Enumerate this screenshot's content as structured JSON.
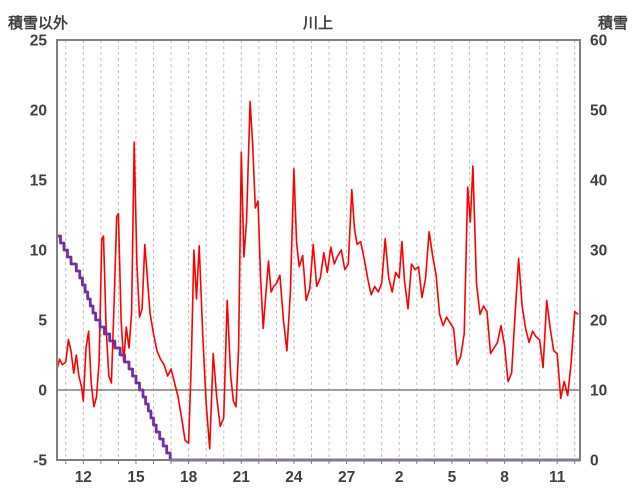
{
  "chart_data": {
    "type": "line",
    "title": "川上",
    "grid": "vertical-dashed",
    "legend": "none",
    "left_axis": {
      "title": "積雪以外",
      "min": -5,
      "max": 25,
      "ticks": [
        -5,
        0,
        5,
        10,
        15,
        20,
        25
      ]
    },
    "right_axis": {
      "title": "積雪",
      "min": 0,
      "max": 60,
      "ticks": [
        0,
        10,
        20,
        30,
        40,
        50,
        60
      ]
    },
    "x_axis": {
      "min": 10.5,
      "max": 40.3,
      "gridline_step": 1,
      "tick_days": [
        12,
        15,
        18,
        21,
        24,
        27,
        30,
        33,
        36,
        39
      ],
      "tick_labels": [
        "12",
        "15",
        "18",
        "21",
        "24",
        "27",
        "2",
        "5",
        "8",
        "11"
      ]
    },
    "zero_line_left_value": 0,
    "colors": {
      "red_series": "#ff0000",
      "purple_series": "#7030a0",
      "border": "#7f7f7f",
      "gridline": "#bfbfbf",
      "zero_line": "#7f7f7f",
      "tick_text": "#3f3f3f"
    },
    "series": [
      {
        "name": "積雪以外",
        "axis": "left",
        "style": "line",
        "color": "#ff0000",
        "width": 1.6,
        "points": [
          [
            10.5,
            1.5
          ],
          [
            10.65,
            2.2
          ],
          [
            10.8,
            1.8
          ],
          [
            11.0,
            2.0
          ],
          [
            11.15,
            3.6
          ],
          [
            11.3,
            2.8
          ],
          [
            11.45,
            1.2
          ],
          [
            11.6,
            2.5
          ],
          [
            11.75,
            1.0
          ],
          [
            11.9,
            0.2
          ],
          [
            12.0,
            -0.8
          ],
          [
            12.15,
            3.0
          ],
          [
            12.3,
            4.2
          ],
          [
            12.45,
            0.5
          ],
          [
            12.6,
            -1.2
          ],
          [
            12.75,
            -0.5
          ],
          [
            12.9,
            2.0
          ],
          [
            13.05,
            10.8
          ],
          [
            13.15,
            11.0
          ],
          [
            13.3,
            4.5
          ],
          [
            13.45,
            1.0
          ],
          [
            13.6,
            0.5
          ],
          [
            13.75,
            6.0
          ],
          [
            13.9,
            12.4
          ],
          [
            14.0,
            12.6
          ],
          [
            14.15,
            5.0
          ],
          [
            14.3,
            2.0
          ],
          [
            14.45,
            4.5
          ],
          [
            14.6,
            3.0
          ],
          [
            14.75,
            5.5
          ],
          [
            14.9,
            17.7
          ],
          [
            15.05,
            9.0
          ],
          [
            15.2,
            5.2
          ],
          [
            15.35,
            5.8
          ],
          [
            15.5,
            10.4
          ],
          [
            15.65,
            8.0
          ],
          [
            15.8,
            5.5
          ],
          [
            16.0,
            4.0
          ],
          [
            16.2,
            2.8
          ],
          [
            16.4,
            2.2
          ],
          [
            16.6,
            1.8
          ],
          [
            16.8,
            1.0
          ],
          [
            17.0,
            1.5
          ],
          [
            17.2,
            0.5
          ],
          [
            17.4,
            -0.5
          ],
          [
            17.6,
            -2.0
          ],
          [
            17.8,
            -3.6
          ],
          [
            18.0,
            -3.8
          ],
          [
            18.15,
            2.0
          ],
          [
            18.3,
            10.0
          ],
          [
            18.45,
            6.5
          ],
          [
            18.6,
            10.3
          ],
          [
            18.8,
            4.0
          ],
          [
            19.0,
            -1.0
          ],
          [
            19.2,
            -4.2
          ],
          [
            19.4,
            2.6
          ],
          [
            19.6,
            -0.5
          ],
          [
            19.8,
            -2.6
          ],
          [
            20.0,
            -2.0
          ],
          [
            20.2,
            6.4
          ],
          [
            20.4,
            1.0
          ],
          [
            20.55,
            -0.8
          ],
          [
            20.7,
            -1.2
          ],
          [
            20.85,
            3.0
          ],
          [
            21.0,
            17.0
          ],
          [
            21.15,
            9.5
          ],
          [
            21.3,
            12.0
          ],
          [
            21.5,
            20.6
          ],
          [
            21.65,
            17.5
          ],
          [
            21.8,
            13.0
          ],
          [
            21.95,
            13.5
          ],
          [
            22.1,
            8.0
          ],
          [
            22.25,
            4.4
          ],
          [
            22.4,
            6.8
          ],
          [
            22.55,
            9.2
          ],
          [
            22.7,
            7.0
          ],
          [
            22.85,
            7.4
          ],
          [
            23.0,
            7.6
          ],
          [
            23.2,
            8.2
          ],
          [
            23.4,
            5.0
          ],
          [
            23.6,
            2.8
          ],
          [
            23.8,
            7.0
          ],
          [
            24.0,
            15.8
          ],
          [
            24.15,
            10.5
          ],
          [
            24.3,
            8.8
          ],
          [
            24.5,
            9.6
          ],
          [
            24.7,
            6.4
          ],
          [
            24.9,
            7.2
          ],
          [
            25.1,
            10.4
          ],
          [
            25.3,
            7.4
          ],
          [
            25.5,
            8.0
          ],
          [
            25.7,
            9.8
          ],
          [
            25.9,
            8.4
          ],
          [
            26.1,
            10.2
          ],
          [
            26.3,
            9.0
          ],
          [
            26.5,
            9.6
          ],
          [
            26.7,
            10.0
          ],
          [
            26.9,
            8.6
          ],
          [
            27.1,
            9.0
          ],
          [
            27.3,
            14.3
          ],
          [
            27.45,
            11.5
          ],
          [
            27.6,
            10.4
          ],
          [
            27.8,
            10.6
          ],
          [
            28.0,
            9.4
          ],
          [
            28.2,
            8.0
          ],
          [
            28.4,
            6.8
          ],
          [
            28.6,
            7.4
          ],
          [
            28.8,
            7.0
          ],
          [
            29.0,
            7.6
          ],
          [
            29.2,
            10.8
          ],
          [
            29.4,
            8.0
          ],
          [
            29.6,
            7.0
          ],
          [
            29.8,
            8.4
          ],
          [
            30.0,
            8.0
          ],
          [
            30.15,
            10.6
          ],
          [
            30.3,
            7.8
          ],
          [
            30.5,
            5.8
          ],
          [
            30.7,
            9.0
          ],
          [
            30.9,
            8.6
          ],
          [
            31.1,
            8.8
          ],
          [
            31.3,
            6.6
          ],
          [
            31.5,
            8.0
          ],
          [
            31.7,
            11.3
          ],
          [
            31.9,
            9.6
          ],
          [
            32.1,
            8.2
          ],
          [
            32.3,
            5.4
          ],
          [
            32.5,
            4.6
          ],
          [
            32.7,
            5.2
          ],
          [
            32.9,
            4.8
          ],
          [
            33.1,
            4.4
          ],
          [
            33.3,
            1.8
          ],
          [
            33.5,
            2.4
          ],
          [
            33.7,
            4.0
          ],
          [
            33.9,
            14.5
          ],
          [
            34.05,
            12.0
          ],
          [
            34.2,
            16.0
          ],
          [
            34.4,
            7.6
          ],
          [
            34.6,
            5.4
          ],
          [
            34.8,
            6.0
          ],
          [
            35.0,
            5.6
          ],
          [
            35.2,
            2.6
          ],
          [
            35.4,
            3.0
          ],
          [
            35.6,
            3.4
          ],
          [
            35.8,
            4.6
          ],
          [
            36.0,
            3.2
          ],
          [
            36.2,
            0.6
          ],
          [
            36.4,
            1.2
          ],
          [
            36.6,
            5.4
          ],
          [
            36.8,
            9.4
          ],
          [
            37.0,
            6.0
          ],
          [
            37.2,
            4.4
          ],
          [
            37.4,
            3.4
          ],
          [
            37.6,
            4.2
          ],
          [
            37.8,
            3.8
          ],
          [
            38.0,
            3.6
          ],
          [
            38.2,
            1.6
          ],
          [
            38.4,
            6.4
          ],
          [
            38.6,
            4.4
          ],
          [
            38.8,
            2.8
          ],
          [
            39.0,
            2.6
          ],
          [
            39.2,
            -0.6
          ],
          [
            39.4,
            0.6
          ],
          [
            39.6,
            -0.4
          ],
          [
            39.8,
            2.0
          ],
          [
            40.0,
            5.6
          ],
          [
            40.2,
            5.4
          ]
        ]
      },
      {
        "name": "積雪",
        "axis": "right",
        "style": "step",
        "color": "#7030a0",
        "width": 2.8,
        "points": [
          [
            10.5,
            32
          ],
          [
            10.7,
            31
          ],
          [
            10.9,
            30
          ],
          [
            11.1,
            29
          ],
          [
            11.3,
            28
          ],
          [
            11.6,
            27
          ],
          [
            11.8,
            26
          ],
          [
            11.95,
            25
          ],
          [
            12.1,
            24
          ],
          [
            12.25,
            23
          ],
          [
            12.4,
            22
          ],
          [
            12.55,
            21
          ],
          [
            12.7,
            20
          ],
          [
            12.95,
            19
          ],
          [
            13.2,
            18
          ],
          [
            13.5,
            17
          ],
          [
            13.8,
            16
          ],
          [
            14.1,
            15
          ],
          [
            14.35,
            14
          ],
          [
            14.6,
            13
          ],
          [
            14.8,
            12
          ],
          [
            15.0,
            11
          ],
          [
            15.2,
            10
          ],
          [
            15.4,
            9
          ],
          [
            15.55,
            8
          ],
          [
            15.7,
            7
          ],
          [
            15.85,
            6
          ],
          [
            16.0,
            5
          ],
          [
            16.15,
            4
          ],
          [
            16.35,
            3
          ],
          [
            16.55,
            2
          ],
          [
            16.75,
            1
          ],
          [
            16.95,
            0
          ],
          [
            40.3,
            0
          ]
        ]
      }
    ]
  }
}
